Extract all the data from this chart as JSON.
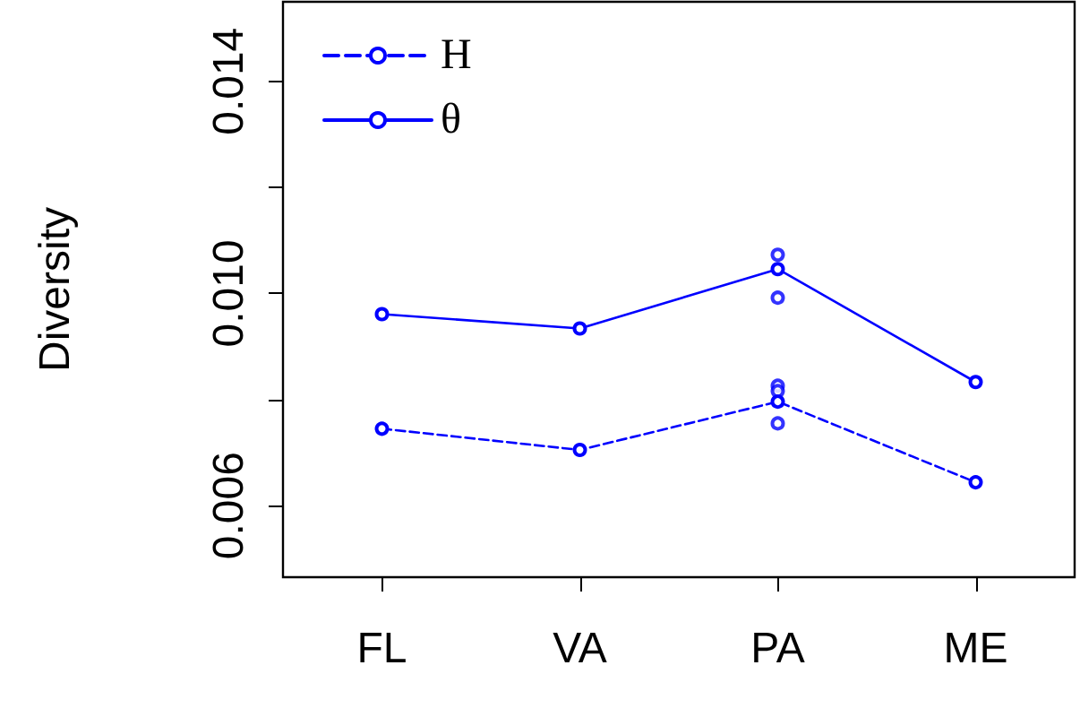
{
  "chart_data": {
    "type": "line",
    "ylabel": "Diversity",
    "categories": [
      "FL",
      "VA",
      "PA",
      "ME"
    ],
    "ylim": [
      0.00465,
      0.0155
    ],
    "yticks": [
      0.006,
      {
        "value": 0.008,
        "label": null
      },
      {
        "value": 0.01,
        "label": "0.010"
      },
      {
        "value": 0.012,
        "label": null
      },
      0.014
    ],
    "grid": false,
    "legend": "top left",
    "marker": "circle",
    "series": [
      {
        "name": "H",
        "color": "#0000ff",
        "line_style": "dashed",
        "values": [
          0.00745,
          0.00705,
          0.00796,
          0.00644
        ]
      },
      {
        "name": "θ",
        "color": "#0000ff",
        "line_style": "solid",
        "values": [
          0.00961,
          0.00934,
          0.01046,
          0.00833
        ]
      },
      {
        "type": "scatter",
        "color": "#0000ff",
        "x": [
          "PA",
          "PA",
          "PA"
        ],
        "values": [
          0.00826,
          0.00816,
          0.00755
        ]
      },
      {
        "type": "scatter",
        "color": "#0000ff",
        "x": [
          "PA",
          "PA"
        ],
        "values": [
          0.01073,
          0.00992
        ]
      }
    ]
  }
}
